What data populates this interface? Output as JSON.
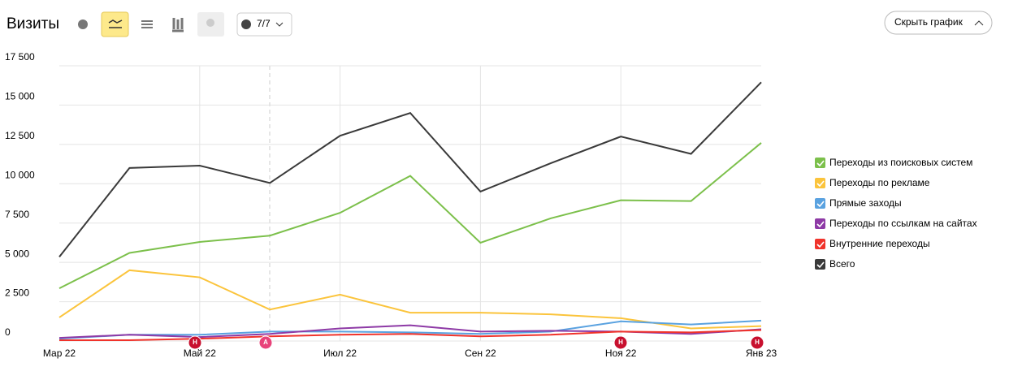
{
  "toolbar": {
    "title": "Визиты",
    "filter": "7/7",
    "hide_button": "Скрыть график"
  },
  "chart_data": {
    "type": "line",
    "categories": [
      "Мар 22",
      null,
      "Май 22",
      null,
      "Июл 22",
      null,
      "Сен 22",
      null,
      "Ноя 22",
      null,
      "Янв 23"
    ],
    "ylim": [
      0,
      17500
    ],
    "yticks": [
      0,
      {
        "value": 2500,
        "label": "2 500"
      },
      {
        "value": 5000,
        "label": "5 000"
      },
      {
        "value": 7500,
        "label": "7 500"
      },
      {
        "value": 10000,
        "label": "10 000"
      },
      {
        "value": 12500,
        "label": "12 500"
      },
      {
        "value": 15000,
        "label": "15 000"
      },
      {
        "value": 17500,
        "label": "17 500"
      }
    ],
    "grid": true,
    "legend": "right",
    "annotations": [
      "Н",
      "А",
      "Н",
      "Н"
    ],
    "series": [
      {
        "name": "Переходы из поисковых систем",
        "color": "#7cc04b",
        "values": [
          3350,
          5600,
          6300,
          6700,
          8150,
          10500,
          6250,
          7800,
          8950,
          8900,
          12600
        ]
      },
      {
        "name": "Переходы по рекламе",
        "color": "#fbc43c",
        "values": [
          1500,
          4500,
          4050,
          2000,
          2950,
          1800,
          1800,
          1700,
          1450,
          800,
          950
        ]
      },
      {
        "name": "Прямые заходы",
        "color": "#5aa2e0",
        "values": [
          150,
          400,
          400,
          600,
          600,
          550,
          450,
          600,
          1250,
          1050,
          1300
        ]
      },
      {
        "name": "Переходы по ссылкам на сайтах",
        "color": "#8e3aa6",
        "values": [
          200,
          400,
          250,
          450,
          800,
          1000,
          600,
          650,
          600,
          450,
          750
        ]
      },
      {
        "name": "Внутренние переходы",
        "color": "#f0332b",
        "values": [
          50,
          50,
          150,
          300,
          400,
          450,
          300,
          400,
          600,
          550,
          700
        ]
      },
      {
        "name": "Всего",
        "color": "#3a3a3a",
        "values": [
          5350,
          11000,
          11150,
          10050,
          13050,
          14500,
          9500,
          11300,
          13000,
          11900,
          16450
        ]
      }
    ]
  }
}
